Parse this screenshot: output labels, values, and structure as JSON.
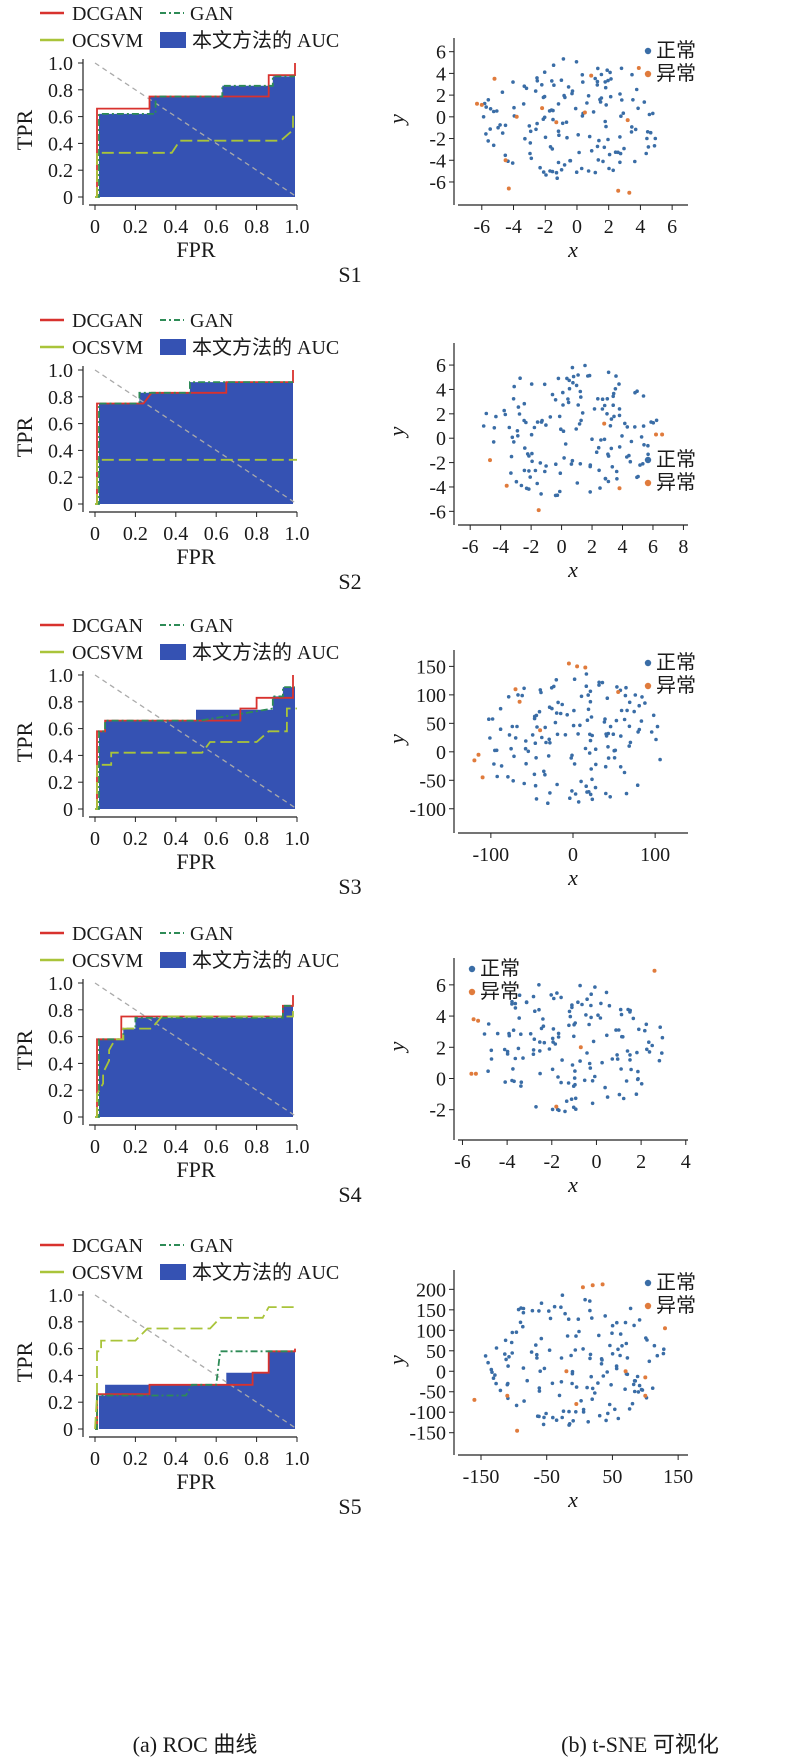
{
  "colors": {
    "dcgan": "#d8322e",
    "gan": "#2e8b57",
    "ocsvm": "#a9c43a",
    "auc": "#3552b3",
    "diagonal": "#aaaaaa",
    "normal": "#3a6da6",
    "anomaly": "#e07b3c",
    "axis": "#222222"
  },
  "roc_legend": {
    "dcgan": "DCGAN",
    "gan": "GAN",
    "ocsvm": "OCSVM",
    "auc": "本文方法的 AUC"
  },
  "tsne_legend": {
    "normal": "正常",
    "anomaly": "异常"
  },
  "roc_axes": {
    "xlabel": "FPR",
    "ylabel": "TPR",
    "xticks": [
      "0",
      "0.2",
      "0.4",
      "0.6",
      "0.8",
      "1.0"
    ],
    "yticks": [
      "0",
      "0.2",
      "0.4",
      "0.6",
      "0.8",
      "1.0"
    ]
  },
  "captions": {
    "left": "(a) ROC 曲线",
    "right": "(b) t-SNE 可视化"
  },
  "chart_data": [
    {
      "type": "area",
      "panel": "S1",
      "name": "roc-S1",
      "xlim": [
        0,
        1
      ],
      "ylim": [
        0,
        1
      ],
      "auc_x": [
        0,
        0.02,
        0.02,
        0.27,
        0.27,
        0.63,
        0.63,
        0.88,
        0.88,
        0.99,
        0.99
      ],
      "auc_y": [
        0,
        0,
        0.62,
        0.62,
        0.75,
        0.75,
        0.83,
        0.83,
        0.9,
        0.9,
        0
      ],
      "series": [
        {
          "name": "DCGAN",
          "x": [
            0,
            0.01,
            0.01,
            0.27,
            0.27,
            0.86,
            0.86,
            0.99,
            0.99
          ],
          "y": [
            0,
            0,
            0.66,
            0.66,
            0.75,
            0.75,
            0.91,
            0.91,
            1.0
          ]
        },
        {
          "name": "GAN",
          "x": [
            0,
            0.02,
            0.02,
            0.3,
            0.3,
            0.63,
            0.63,
            0.88,
            0.88,
            0.99
          ],
          "y": [
            0,
            0,
            0.62,
            0.62,
            0.75,
            0.75,
            0.83,
            0.83,
            0.9,
            0.9
          ]
        },
        {
          "name": "OCSVM",
          "x": [
            0,
            0.01,
            0.01,
            0.38,
            0.42,
            0.92,
            0.98,
            0.98,
            1.0
          ],
          "y": [
            0,
            0,
            0.33,
            0.33,
            0.42,
            0.42,
            0.5,
            0.6,
            0.6
          ]
        }
      ]
    },
    {
      "type": "area",
      "panel": "S2",
      "name": "roc-S2",
      "xlim": [
        0,
        1
      ],
      "ylim": [
        0,
        1
      ],
      "auc_x": [
        0,
        0.02,
        0.02,
        0.22,
        0.22,
        0.47,
        0.47,
        0.98,
        0.98
      ],
      "auc_y": [
        0,
        0,
        0.75,
        0.75,
        0.83,
        0.83,
        0.91,
        0.91,
        0
      ],
      "series": [
        {
          "name": "DCGAN",
          "x": [
            0,
            0.01,
            0.01,
            0.18,
            0.24,
            0.28,
            0.28,
            0.55,
            0.55,
            0.65,
            0.65,
            0.98,
            0.98
          ],
          "y": [
            0,
            0,
            0.75,
            0.75,
            0.75,
            0.83,
            0.83,
            0.83,
            0.83,
            0.83,
            0.91,
            0.91,
            1.0
          ]
        },
        {
          "name": "GAN",
          "x": [
            0,
            0.02,
            0.02,
            0.22,
            0.22,
            0.47,
            0.47,
            0.98
          ],
          "y": [
            0,
            0,
            0.75,
            0.75,
            0.83,
            0.83,
            0.91,
            0.91
          ]
        },
        {
          "name": "OCSVM",
          "x": [
            0,
            0.01,
            0.01,
            1.0
          ],
          "y": [
            0,
            0,
            0.33,
            0.33
          ]
        }
      ]
    },
    {
      "type": "area",
      "panel": "S3",
      "name": "roc-S3",
      "xlim": [
        0,
        1
      ],
      "ylim": [
        0,
        1
      ],
      "auc_x": [
        0,
        0.02,
        0.02,
        0.05,
        0.05,
        0.5,
        0.5,
        0.88,
        0.88,
        0.93,
        0.93,
        0.99,
        0.99
      ],
      "auc_y": [
        0,
        0,
        0.58,
        0.58,
        0.66,
        0.66,
        0.74,
        0.74,
        0.84,
        0.84,
        0.91,
        0.91,
        0
      ],
      "series": [
        {
          "name": "DCGAN",
          "x": [
            0,
            0.01,
            0.01,
            0.05,
            0.05,
            0.72,
            0.72,
            0.8,
            0.8,
            0.98,
            0.98
          ],
          "y": [
            0,
            0,
            0.58,
            0.58,
            0.66,
            0.66,
            0.75,
            0.75,
            0.83,
            0.83,
            1.0
          ]
        },
        {
          "name": "GAN",
          "x": [
            0,
            0.02,
            0.02,
            0.05,
            0.05,
            0.52,
            0.52,
            0.88,
            0.88,
            0.93,
            0.93,
            0.99
          ],
          "y": [
            0,
            0,
            0.58,
            0.58,
            0.66,
            0.66,
            0.66,
            0.75,
            0.84,
            0.84,
            0.91,
            0.91
          ]
        },
        {
          "name": "OCSVM",
          "x": [
            0,
            0.01,
            0.01,
            0.08,
            0.08,
            0.53,
            0.57,
            0.8,
            0.86,
            0.95,
            0.95,
            1.0
          ],
          "y": [
            0,
            0,
            0.33,
            0.33,
            0.42,
            0.42,
            0.5,
            0.5,
            0.58,
            0.58,
            0.75,
            0.75
          ]
        }
      ]
    },
    {
      "type": "area",
      "panel": "S4",
      "name": "roc-S4",
      "xlim": [
        0,
        1
      ],
      "ylim": [
        0,
        1
      ],
      "auc_x": [
        0,
        0.02,
        0.02,
        0.14,
        0.14,
        0.2,
        0.2,
        0.93,
        0.93,
        0.98,
        0.98
      ],
      "auc_y": [
        0,
        0,
        0.58,
        0.58,
        0.66,
        0.66,
        0.74,
        0.74,
        0.83,
        0.83,
        0
      ],
      "series": [
        {
          "name": "DCGAN",
          "x": [
            0,
            0.01,
            0.01,
            0.13,
            0.13,
            0.93,
            0.93,
            0.98,
            0.98
          ],
          "y": [
            0,
            0,
            0.58,
            0.58,
            0.75,
            0.75,
            0.83,
            0.83,
            0.91
          ]
        },
        {
          "name": "GAN",
          "x": [
            0,
            0.02,
            0.02,
            0.14,
            0.14,
            0.2,
            0.2,
            0.93,
            0.93,
            0.98
          ],
          "y": [
            0,
            0,
            0.58,
            0.58,
            0.66,
            0.66,
            0.74,
            0.74,
            0.83,
            0.83
          ]
        },
        {
          "name": "OCSVM",
          "x": [
            0,
            0.01,
            0.01,
            0.04,
            0.04,
            0.07,
            0.07,
            0.1,
            0.14,
            0.14,
            0.28,
            0.33,
            0.9,
            0.98,
            0.98
          ],
          "y": [
            0,
            0,
            0.17,
            0.25,
            0.33,
            0.42,
            0.5,
            0.58,
            0.58,
            0.66,
            0.66,
            0.75,
            0.75,
            0.75,
            0.83
          ]
        }
      ]
    },
    {
      "type": "area",
      "panel": "S5",
      "name": "roc-S5",
      "xlim": [
        0,
        1
      ],
      "ylim": [
        0,
        1
      ],
      "auc_x": [
        0,
        0.02,
        0.02,
        0.05,
        0.05,
        0.65,
        0.65,
        0.86,
        0.86,
        0.99,
        0.99
      ],
      "auc_y": [
        0,
        0,
        0.25,
        0.25,
        0.33,
        0.33,
        0.42,
        0.42,
        0.58,
        0.58,
        0
      ],
      "series": [
        {
          "name": "DCGAN",
          "x": [
            0,
            0.01,
            0.01,
            0.27,
            0.27,
            0.78,
            0.78,
            0.86,
            0.86,
            0.99,
            0.99
          ],
          "y": [
            0,
            0,
            0.26,
            0.26,
            0.33,
            0.33,
            0.42,
            0.42,
            0.58,
            0.58,
            0.6
          ]
        },
        {
          "name": "GAN",
          "x": [
            0,
            0.01,
            0.01,
            0.45,
            0.48,
            0.6,
            0.62,
            0.82,
            0.82,
            0.99
          ],
          "y": [
            0,
            0,
            0.25,
            0.25,
            0.33,
            0.33,
            0.58,
            0.58,
            0.58,
            0.58
          ]
        },
        {
          "name": "OCSVM",
          "x": [
            0,
            0.01,
            0.01,
            0.03,
            0.03,
            0.2,
            0.26,
            0.57,
            0.62,
            0.83,
            0.86,
            1.0
          ],
          "y": [
            0,
            0.25,
            0.58,
            0.58,
            0.66,
            0.66,
            0.75,
            0.75,
            0.83,
            0.83,
            0.91,
            0.91
          ]
        }
      ]
    },
    {
      "type": "scatter",
      "panel": "S1",
      "name": "tsne-S1",
      "xlim": [
        -7.5,
        7
      ],
      "ylim": [
        -7.2,
        6.8
      ],
      "xticks": [
        "-6",
        "-4",
        "-2",
        "0",
        "2",
        "4",
        "6"
      ],
      "yticks": [
        "6",
        "4",
        "2",
        "0",
        "-2",
        "-4",
        "-6"
      ],
      "xtick_values": [
        -6,
        -4,
        -2,
        0,
        2,
        4,
        6
      ],
      "ytick_values": [
        6,
        4,
        2,
        0,
        -2,
        -4,
        -6
      ],
      "xlabel": "x",
      "ylabel": "y",
      "legend_pos": "top-right",
      "n_normal": 150,
      "anomalies": [
        [
          -6.3,
          1.2
        ],
        [
          -6.0,
          1.1
        ],
        [
          -5.2,
          3.5
        ],
        [
          -4.5,
          -4.0
        ],
        [
          -4.3,
          -6.6
        ],
        [
          -2.2,
          0.8
        ],
        [
          -1.3,
          -0.5
        ],
        [
          0.5,
          0.4
        ],
        [
          0.9,
          3.8
        ],
        [
          3.2,
          -0.3
        ],
        [
          3.9,
          4.5
        ],
        [
          2.6,
          -6.8
        ],
        [
          3.3,
          -7.0
        ],
        [
          -3.8,
          0.0
        ]
      ]
    },
    {
      "type": "scatter",
      "panel": "S2",
      "name": "tsne-S2",
      "xlim": [
        -6.8,
        8.3
      ],
      "ylim": [
        -6.3,
        7.4
      ],
      "xticks": [
        "-6",
        "-4",
        "-2",
        "0",
        "2",
        "4",
        "6",
        "8"
      ],
      "yticks": [
        "6",
        "4",
        "2",
        "0",
        "-2",
        "-4",
        "-6"
      ],
      "xtick_values": [
        -6,
        -4,
        -2,
        0,
        2,
        4,
        6,
        8
      ],
      "ytick_values": [
        6,
        4,
        2,
        0,
        -2,
        -4,
        -6
      ],
      "xlabel": "x",
      "ylabel": "y",
      "legend_pos": "right",
      "n_normal": 150,
      "anomalies": [
        [
          6.2,
          0.3
        ],
        [
          6.6,
          0.3
        ],
        [
          3.8,
          -4.1
        ],
        [
          -3.6,
          -3.9
        ],
        [
          -4.7,
          -1.8
        ],
        [
          -1.5,
          -5.9
        ],
        [
          2.8,
          1.2
        ]
      ]
    },
    {
      "type": "scatter",
      "panel": "S3",
      "name": "tsne-S3",
      "xlim": [
        -140,
        140
      ],
      "ylim": [
        -125,
        170
      ],
      "xticks": [
        "-100",
        "0",
        "100"
      ],
      "yticks": [
        "150",
        "100",
        "50",
        "0",
        "-50",
        "-100"
      ],
      "xtick_values": [
        -100,
        0,
        100
      ],
      "ytick_values": [
        150,
        100,
        50,
        0,
        -50,
        -100
      ],
      "xlabel": "x",
      "ylabel": "y",
      "legend_pos": "top-right",
      "n_normal": 150,
      "anomalies": [
        [
          -5,
          155
        ],
        [
          5,
          150
        ],
        [
          15,
          148
        ],
        [
          -65,
          88
        ],
        [
          -115,
          -5
        ],
        [
          -120,
          -15
        ],
        [
          -110,
          -45
        ],
        [
          -40,
          38
        ],
        [
          55,
          105
        ],
        [
          -70,
          110
        ]
      ]
    },
    {
      "type": "scatter",
      "panel": "S4",
      "name": "tsne-S4",
      "xlim": [
        -6.2,
        4.1
      ],
      "ylim": [
        -3.3,
        7.4
      ],
      "xticks": [
        "-6",
        "-4",
        "-2",
        "0",
        "2",
        "4"
      ],
      "yticks": [
        "6",
        "4",
        "2",
        "0",
        "-2"
      ],
      "xtick_values": [
        -6,
        -4,
        -2,
        0,
        2,
        4
      ],
      "ytick_values": [
        6,
        4,
        2,
        0,
        -2
      ],
      "xlabel": "x",
      "ylabel": "y",
      "legend_pos": "top-left",
      "n_normal": 150,
      "anomalies": [
        [
          -5.6,
          0.3
        ],
        [
          -5.4,
          0.3
        ],
        [
          -5.5,
          3.8
        ],
        [
          -5.3,
          3.7
        ],
        [
          2.6,
          6.9
        ],
        [
          -0.7,
          2.0
        ],
        [
          -1.8,
          -1.8
        ]
      ]
    },
    {
      "type": "scatter",
      "panel": "S5",
      "name": "tsne-S5",
      "xlim": [
        -185,
        165
      ],
      "ylim": [
        -180,
        235
      ],
      "xticks": [
        "-150",
        "-50",
        "50",
        "150"
      ],
      "yticks": [
        "200",
        "150",
        "100",
        "50",
        "0",
        "-50",
        "-100",
        "-150"
      ],
      "xtick_values": [
        -150,
        -50,
        50,
        150
      ],
      "ytick_values": [
        200,
        150,
        100,
        50,
        0,
        -50,
        -100,
        -150
      ],
      "xlabel": "x",
      "ylabel": "y",
      "legend_pos": "top-right",
      "n_normal": 150,
      "anomalies": [
        [
          5,
          205
        ],
        [
          20,
          210
        ],
        [
          35,
          212
        ],
        [
          -160,
          -70
        ],
        [
          -95,
          -145
        ],
        [
          -110,
          -60
        ],
        [
          130,
          105
        ],
        [
          -20,
          0
        ],
        [
          70,
          0
        ],
        [
          100,
          -15
        ],
        [
          -5,
          -80
        ],
        [
          100,
          -60
        ]
      ]
    }
  ]
}
